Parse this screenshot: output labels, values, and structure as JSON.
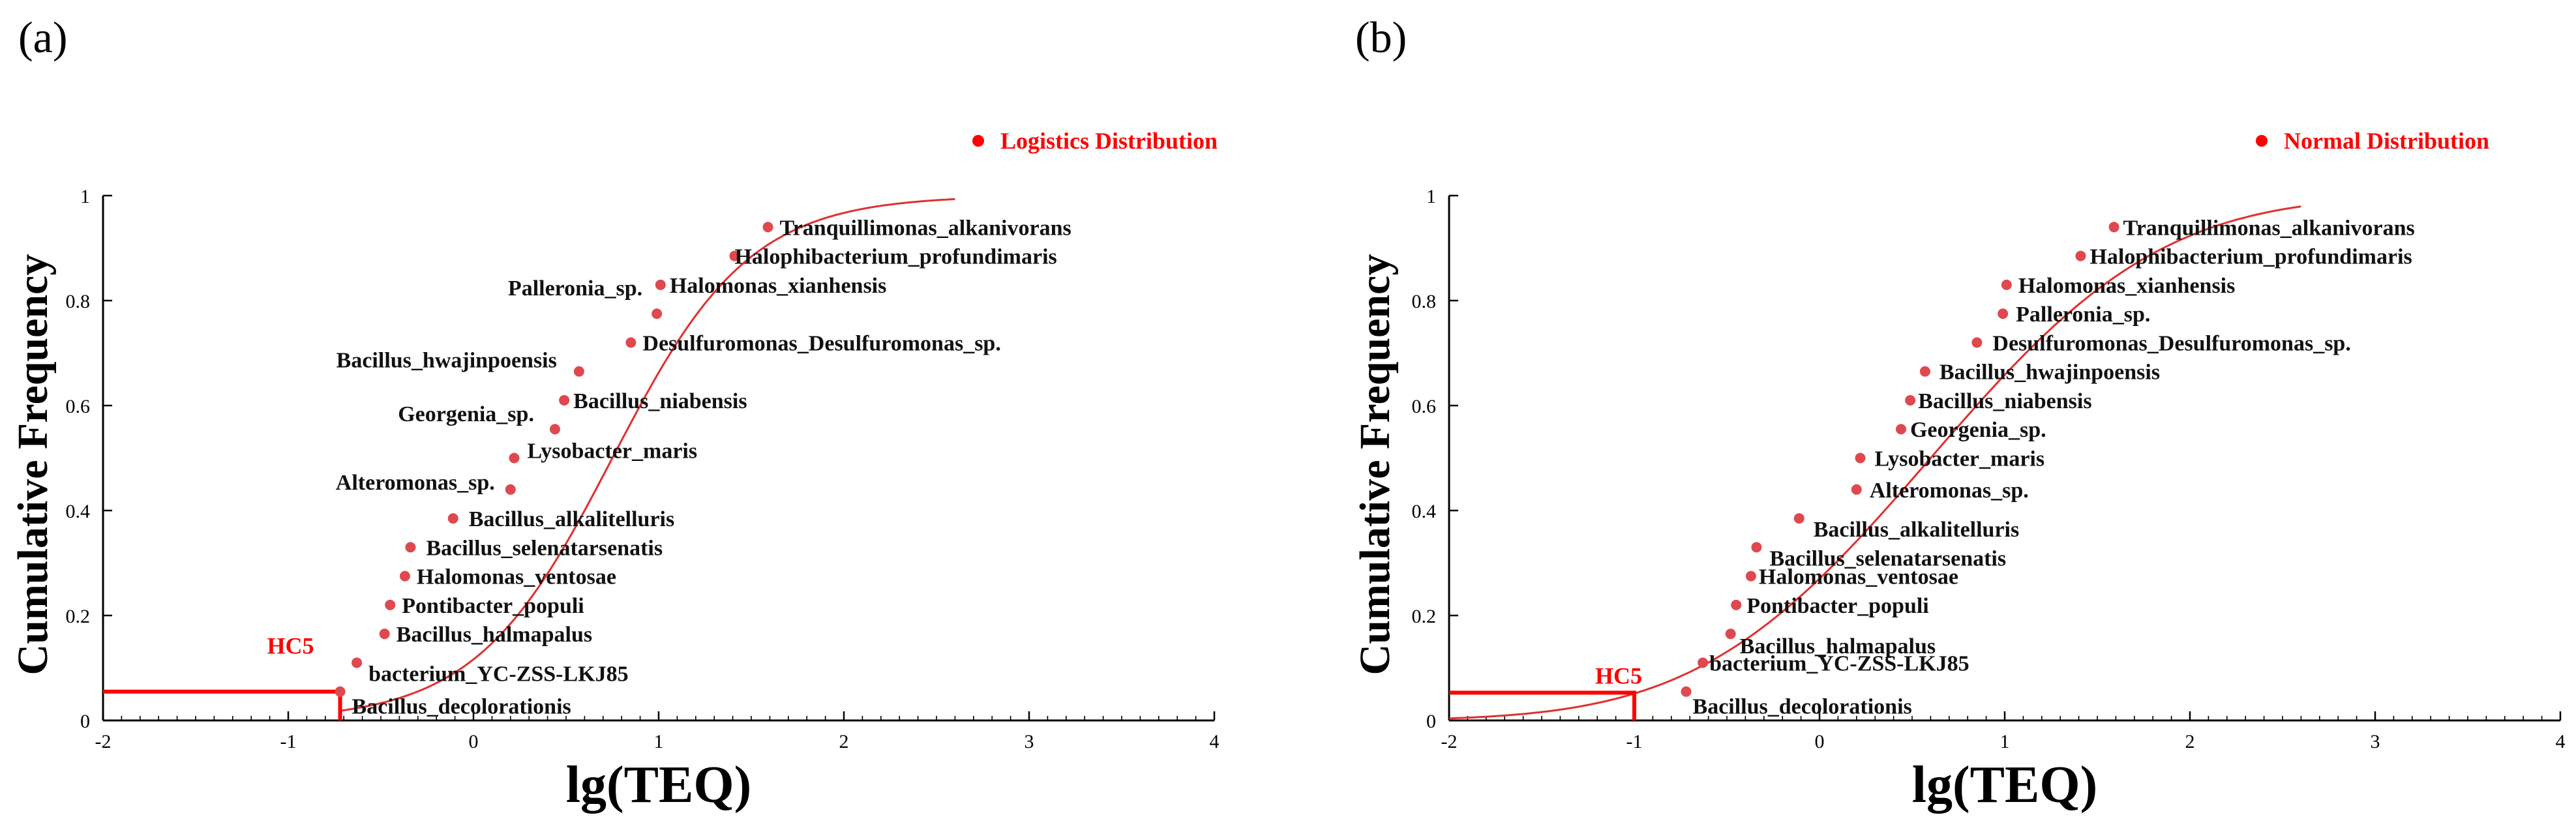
{
  "chart_data": [
    {
      "panel_label": "(a)",
      "type": "scatter",
      "fit": "logistic",
      "legend": {
        "label": "Logistics Distribution",
        "color": "#ff0000",
        "position": "top-right"
      },
      "xlabel": "lg(TEQ)",
      "ylabel": "Cumulative Frequency",
      "xlim": [
        -2,
        4
      ],
      "ylim": [
        0,
        1
      ],
      "xticks": [
        "-2",
        "-1",
        "0",
        "1",
        "2",
        "3",
        "4"
      ],
      "yticks": [
        "0",
        "0.2",
        "0.4",
        "0.6",
        "0.8",
        "1"
      ],
      "curve": {
        "mu": 0.75,
        "s": 0.37,
        "x_range": [
          -0.72,
          2.6
        ]
      },
      "hc5": {
        "label": "HC5",
        "x": -0.72,
        "y": 0.055
      },
      "points": [
        {
          "name": "Bacillus_decolorationis",
          "x": -0.72,
          "y": 0.055
        },
        {
          "name": "bacterium_YC-ZSS-LKJ85",
          "x": -0.63,
          "y": 0.11
        },
        {
          "name": "Bacillus_halmapalus",
          "x": -0.48,
          "y": 0.165
        },
        {
          "name": "Pontibacter_populi",
          "x": -0.45,
          "y": 0.22
        },
        {
          "name": "Halomonas_ventosae",
          "x": -0.37,
          "y": 0.275
        },
        {
          "name": "Bacillus_selenatarsenatis",
          "x": -0.34,
          "y": 0.33
        },
        {
          "name": "Bacillus_alkalitelluris",
          "x": -0.11,
          "y": 0.385
        },
        {
          "name": "Alteromonas_sp.",
          "x": 0.2,
          "y": 0.44
        },
        {
          "name": "Lysobacter_maris",
          "x": 0.22,
          "y": 0.5
        },
        {
          "name": "Georgenia_sp.",
          "x": 0.44,
          "y": 0.555
        },
        {
          "name": "Bacillus_niabensis",
          "x": 0.49,
          "y": 0.61
        },
        {
          "name": "Bacillus_hwajinpoensis",
          "x": 0.57,
          "y": 0.665
        },
        {
          "name": "Desulfuromonas_Desulfuromonas_sp.",
          "x": 0.85,
          "y": 0.72
        },
        {
          "name": "Palleronia_sp.",
          "x": 0.99,
          "y": 0.775
        },
        {
          "name": "Halomonas_xianhensis",
          "x": 1.01,
          "y": 0.83
        },
        {
          "name": "Halophibacterium_profundimaris",
          "x": 1.41,
          "y": 0.885
        },
        {
          "name": "Tranquillimonas_alkanivorans",
          "x": 1.59,
          "y": 0.94
        }
      ]
    },
    {
      "panel_label": "(b)",
      "type": "scatter",
      "fit": "normal",
      "legend": {
        "label": "Normal Distribution",
        "color": "#ff0000",
        "position": "top-right"
      },
      "xlabel": "lg(TEQ)",
      "ylabel": "Cumulative Frequency",
      "xlim": [
        -2,
        4
      ],
      "ylim": [
        0,
        1
      ],
      "xticks": [
        "-2",
        "-1",
        "0",
        "1",
        "2",
        "3",
        "4"
      ],
      "yticks": [
        "0",
        "0.2",
        "0.4",
        "0.6",
        "0.8",
        "1"
      ],
      "curve": {
        "mu": 0.6,
        "sigma": 0.98,
        "x_range": [
          -2,
          2.6
        ]
      },
      "hc5": {
        "label": "HC5",
        "x": -1.0,
        "y": 0.053
      },
      "points": [
        {
          "name": "Bacillus_decolorationis",
          "x": -0.72,
          "y": 0.055
        },
        {
          "name": "bacterium_YC-ZSS-LKJ85",
          "x": -0.63,
          "y": 0.11
        },
        {
          "name": "Bacillus_halmapalus",
          "x": -0.48,
          "y": 0.165
        },
        {
          "name": "Pontibacter_populi",
          "x": -0.45,
          "y": 0.22
        },
        {
          "name": "Halomonas_ventosae",
          "x": -0.37,
          "y": 0.275
        },
        {
          "name": "Bacillus_selenatarsenatis",
          "x": -0.34,
          "y": 0.33
        },
        {
          "name": "Bacillus_alkalitelluris",
          "x": -0.11,
          "y": 0.385
        },
        {
          "name": "Alteromonas_sp.",
          "x": 0.2,
          "y": 0.44
        },
        {
          "name": "Lysobacter_maris",
          "x": 0.22,
          "y": 0.5
        },
        {
          "name": "Georgenia_sp.",
          "x": 0.44,
          "y": 0.555
        },
        {
          "name": "Bacillus_niabensis",
          "x": 0.49,
          "y": 0.61
        },
        {
          "name": "Bacillus_hwajinpoensis",
          "x": 0.57,
          "y": 0.665
        },
        {
          "name": "Desulfuromonas_Desulfuromonas_sp.",
          "x": 0.85,
          "y": 0.72
        },
        {
          "name": "Palleronia_sp.",
          "x": 0.99,
          "y": 0.775
        },
        {
          "name": "Halomonas_xianhensis",
          "x": 1.01,
          "y": 0.83
        },
        {
          "name": "Halophibacterium_profundimaris",
          "x": 1.41,
          "y": 0.885
        },
        {
          "name": "Tranquillimonas_alkanivorans",
          "x": 1.59,
          "y": 0.94
        }
      ]
    }
  ]
}
